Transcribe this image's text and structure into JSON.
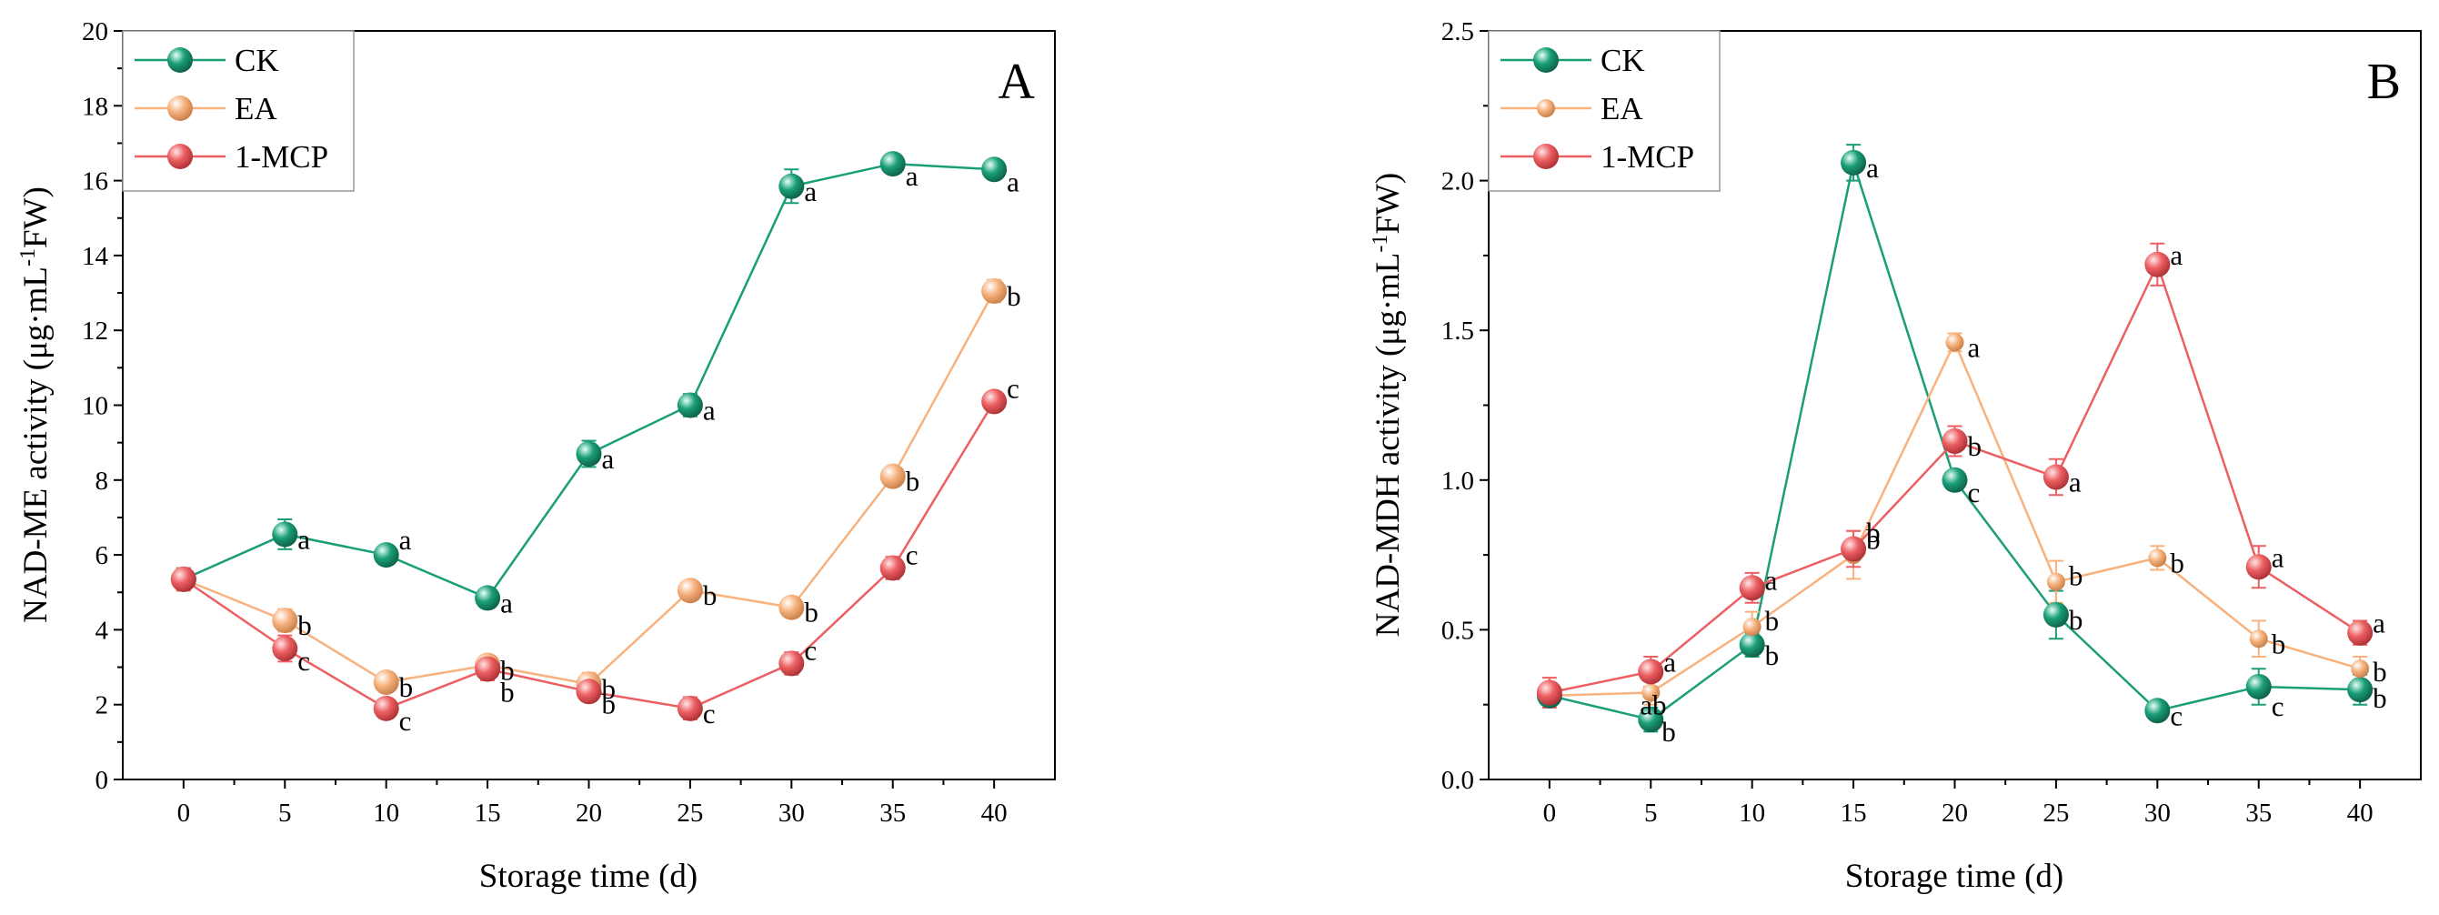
{
  "colors": {
    "CK": "#1a9e78",
    "EA": "#f7b27e",
    "1-MCP": "#ec5f62"
  },
  "chart_data": [
    {
      "type": "line",
      "panel_label": "A",
      "xlabel": "Storage time (d)",
      "ylabel_prefix": "NAD-ME activity (μg·mL",
      "ylabel_sup": "-1",
      "ylabel_suffix": "FW)",
      "x": [
        0,
        5,
        10,
        15,
        20,
        25,
        30,
        35,
        40
      ],
      "xticks": [
        "0",
        "5",
        "10",
        "15",
        "20",
        "25",
        "30",
        "35",
        "40"
      ],
      "xlim": [
        -3,
        43
      ],
      "ylim": [
        0,
        20
      ],
      "yticks": [
        "0",
        "2",
        "4",
        "6",
        "8",
        "10",
        "12",
        "14",
        "16",
        "18",
        "20"
      ],
      "ytick_values": [
        0,
        2,
        4,
        6,
        8,
        10,
        12,
        14,
        16,
        18,
        20
      ],
      "legend_position": "top-left",
      "series": [
        {
          "name": "CK",
          "values": [
            5.35,
            6.55,
            6.0,
            4.85,
            8.7,
            10.0,
            15.85,
            16.45,
            16.3
          ],
          "errors": [
            0.3,
            0.4,
            0.25,
            0.2,
            0.35,
            0.3,
            0.45,
            0.2,
            0.25
          ],
          "labels": [
            "",
            "a",
            "a",
            "a",
            "a",
            "a",
            "a",
            "a",
            "a"
          ]
        },
        {
          "name": "EA",
          "values": [
            5.35,
            4.25,
            2.6,
            3.05,
            2.55,
            5.05,
            4.6,
            8.1,
            13.05
          ],
          "errors": [
            0.3,
            0.3,
            0.2,
            0.25,
            0.3,
            0.2,
            0.25,
            0.2,
            0.3
          ],
          "labels": [
            "",
            "b",
            "b",
            "b",
            "b",
            "b",
            "b",
            "b",
            "b"
          ]
        },
        {
          "name": "1-MCP",
          "values": [
            5.35,
            3.5,
            1.9,
            2.95,
            2.35,
            1.9,
            3.1,
            5.65,
            10.1
          ],
          "errors": [
            0.3,
            0.35,
            0.2,
            0.3,
            0.25,
            0.3,
            0.3,
            0.3,
            0.2
          ],
          "labels": [
            "",
            "c",
            "c",
            "b",
            "b",
            "c",
            "c",
            "c",
            "c"
          ]
        }
      ]
    },
    {
      "type": "line",
      "panel_label": "B",
      "xlabel": "Storage time (d)",
      "ylabel_prefix": "NAD-MDH activity (μg·mL",
      "ylabel_sup": "-1",
      "ylabel_suffix": "FW)",
      "x": [
        0,
        5,
        10,
        15,
        20,
        25,
        30,
        35,
        40
      ],
      "xticks": [
        "0",
        "5",
        "10",
        "15",
        "20",
        "25",
        "30",
        "35",
        "40"
      ],
      "xlim": [
        -3,
        43
      ],
      "ylim": [
        0,
        2.5
      ],
      "yticks": [
        "0.0",
        "0.5",
        "1.0",
        "1.5",
        "2.0",
        "2.5"
      ],
      "ytick_values": [
        0,
        0.5,
        1.0,
        1.5,
        2.0,
        2.5
      ],
      "legend_position": "top-left",
      "series": [
        {
          "name": "CK",
          "values": [
            0.28,
            0.2,
            0.45,
            2.06,
            1.0,
            0.55,
            0.23,
            0.31,
            0.3
          ],
          "errors": [
            0.03,
            0.04,
            0.04,
            0.06,
            0.03,
            0.08,
            0.03,
            0.06,
            0.05
          ],
          "labels": [
            "",
            "b",
            "b",
            "a",
            "c",
            "b",
            "c",
            "c",
            "b"
          ]
        },
        {
          "name": "EA",
          "values": [
            0.28,
            0.29,
            0.51,
            0.75,
            1.46,
            0.66,
            0.74,
            0.47,
            0.37
          ],
          "errors": [
            0.03,
            0.04,
            0.05,
            0.08,
            0.03,
            0.07,
            0.04,
            0.06,
            0.04
          ],
          "labels": [
            "",
            "ab",
            "b",
            "b",
            "a",
            "b",
            "b",
            "b",
            "b"
          ]
        },
        {
          "name": "1-MCP",
          "values": [
            0.29,
            0.36,
            0.64,
            0.77,
            1.13,
            1.01,
            1.72,
            0.71,
            0.49
          ],
          "errors": [
            0.05,
            0.05,
            0.05,
            0.06,
            0.05,
            0.06,
            0.07,
            0.07,
            0.04
          ],
          "labels": [
            "",
            "a",
            "a",
            "b",
            "b",
            "a",
            "a",
            "a",
            "a"
          ]
        }
      ]
    }
  ]
}
